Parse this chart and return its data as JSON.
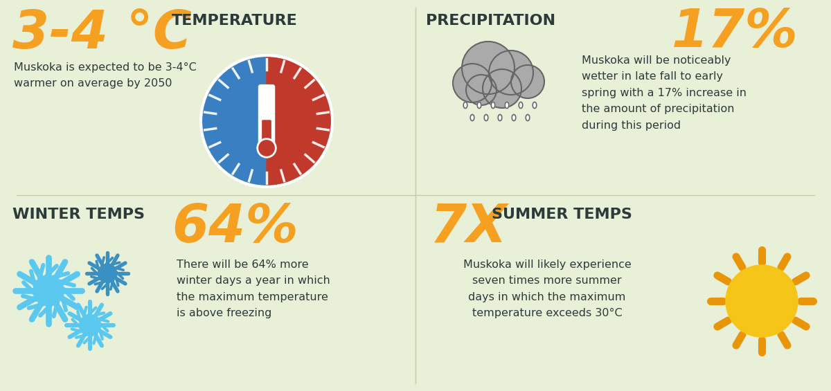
{
  "bg_color": "#e8f0d8",
  "orange": "#f5a020",
  "dark": "#2d3a3a",
  "blue_snow1": "#5bc8f0",
  "blue_snow2": "#3a90c0",
  "sun_yellow": "#f5c518",
  "sun_orange": "#e8950a",
  "gray_cloud": "#aaaaaa",
  "cloud_outline": "#666666",
  "thermo_blue": "#3a7fc1",
  "thermo_red": "#c0392b",
  "sections": {
    "temp_big": "3-4 °C",
    "temp_label": "TEMPERATURE",
    "temp_desc": "Muskoka is expected to be 3-4°C\nwarmer on average by 2050",
    "precip_label": "PRECIPITATION",
    "precip_big": "17%",
    "precip_desc": "Muskoka will be noticeably\nwetter in late fall to early\nspring with a 17% increase in\nthe amount of precipitation\nduring this period",
    "winter_label": "WINTER TEMPS",
    "winter_big": "64%",
    "winter_desc": "There will be 64% more\nwinter days a year in which\nthe maximum temperature\nis above freezing",
    "summer_big": "7X",
    "summer_label": "SUMMER TEMPS",
    "summer_desc": "Muskoka will likely experience\nseven times more summer\ndays in which the maximum\ntemperature exceeds 30°C"
  }
}
